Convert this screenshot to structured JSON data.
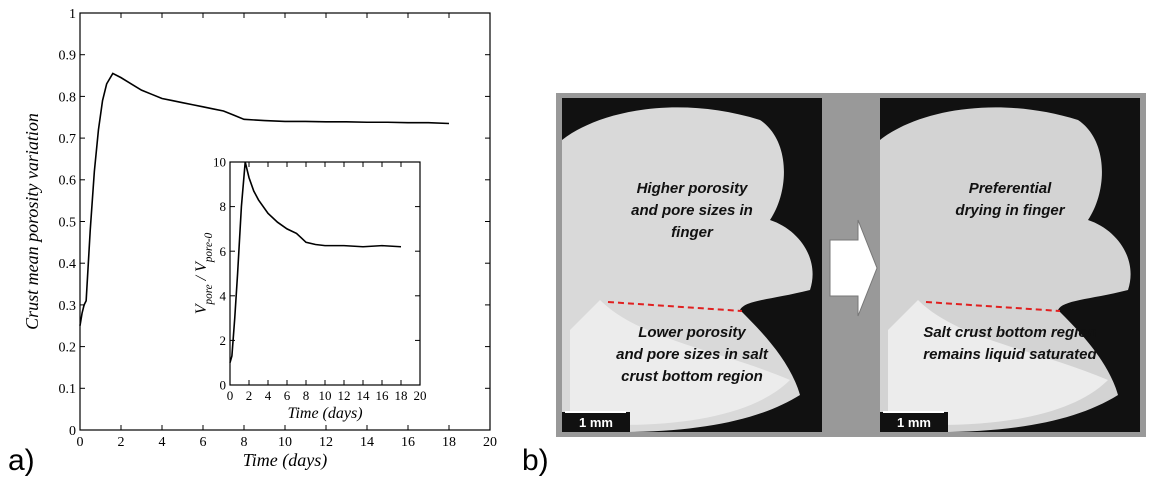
{
  "chart_data": [
    {
      "type": "line",
      "panel_label": "a)",
      "xlabel": "Time (days)",
      "ylabel": "Crust mean porosity variation",
      "x": [
        0,
        0.1,
        0.2,
        0.3,
        0.5,
        0.7,
        0.9,
        1.1,
        1.3,
        1.6,
        2,
        2.5,
        3,
        3.5,
        4,
        4.5,
        5,
        5.5,
        6,
        6.5,
        7,
        7.5,
        8,
        9,
        10,
        11,
        12,
        13,
        14,
        15,
        16,
        17,
        18
      ],
      "series": [
        {
          "color": "#000000",
          "values": [
            0.25,
            0.28,
            0.3,
            0.31,
            0.48,
            0.62,
            0.72,
            0.79,
            0.83,
            0.855,
            0.845,
            0.83,
            0.815,
            0.805,
            0.795,
            0.79,
            0.785,
            0.78,
            0.775,
            0.77,
            0.765,
            0.755,
            0.745,
            0.742,
            0.74,
            0.74,
            0.739,
            0.739,
            0.738,
            0.738,
            0.737,
            0.737,
            0.735
          ]
        }
      ],
      "xlim": [
        0,
        20
      ],
      "xticks": [
        0,
        2,
        4,
        6,
        8,
        10,
        12,
        14,
        16,
        18,
        20
      ],
      "ylim": [
        0,
        1
      ],
      "yticks": [
        0,
        0.1,
        0.2,
        0.3,
        0.4,
        0.5,
        0.6,
        0.7,
        0.8,
        0.9,
        1
      ]
    },
    {
      "type": "line",
      "xlabel": "Time (days)",
      "ylabel_parts": [
        "V",
        "pore",
        " / V",
        "pore-0"
      ],
      "x": [
        0,
        0.2,
        0.5,
        0.8,
        1.2,
        1.6,
        2,
        2.5,
        3,
        4,
        5,
        6,
        7,
        7.5,
        8,
        9,
        10,
        12,
        14,
        16,
        18
      ],
      "series": [
        {
          "color": "#000000",
          "values": [
            1,
            1.3,
            3,
            5,
            8,
            10,
            9.3,
            8.7,
            8.3,
            7.7,
            7.3,
            7,
            6.8,
            6.6,
            6.4,
            6.3,
            6.25,
            6.25,
            6.2,
            6.25,
            6.2
          ]
        }
      ],
      "xlim": [
        0,
        20
      ],
      "xticks": [
        0,
        2,
        4,
        6,
        8,
        10,
        12,
        14,
        16,
        18,
        20
      ],
      "ylim": [
        0,
        10
      ],
      "yticks": [
        0,
        2,
        4,
        6,
        8,
        10
      ]
    }
  ],
  "panel_b": {
    "label": "b)",
    "left": {
      "top_text": [
        "Higher porosity",
        "and pore sizes in",
        "finger"
      ],
      "bottom_text": [
        "Lower porosity",
        "and pore sizes in salt",
        "crust bottom region"
      ],
      "scale": "1 mm"
    },
    "right": {
      "top_text": [
        "Preferential",
        "drying in finger"
      ],
      "bottom_text": [
        "Salt crust bottom region",
        "remains liquid saturated"
      ],
      "scale": "1 mm"
    }
  }
}
